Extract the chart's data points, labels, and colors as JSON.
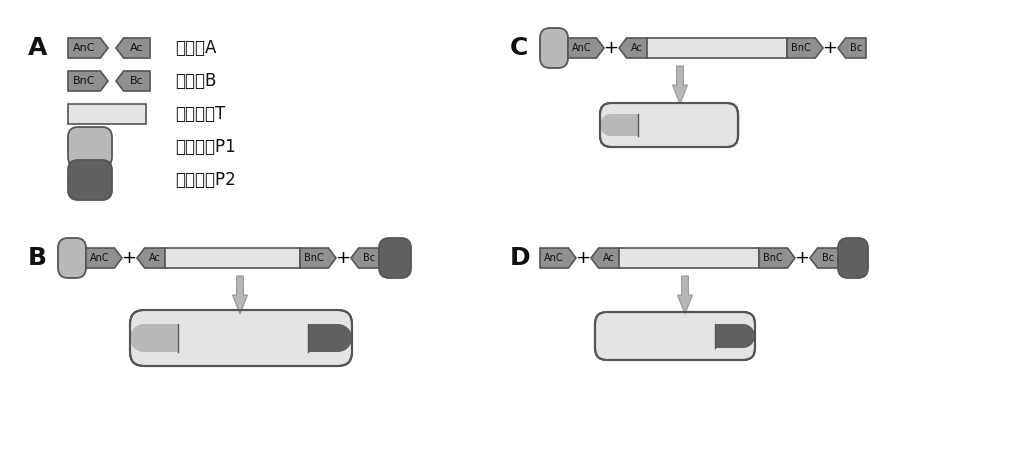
{
  "background": "#ffffff",
  "label_A": "A",
  "label_B": "B",
  "label_C": "C",
  "label_D": "D",
  "legend_labels": [
    "内含肽A",
    "内含肽B",
    "目的蛋白T",
    "辅助蛋白P1",
    "辅助蛋白P2"
  ],
  "colors": {
    "An": "#909090",
    "Ac": "#909090",
    "Bn": "#909090",
    "Bc": "#909090",
    "T": "#e4e4e4",
    "P1": "#b8b8b8",
    "P2": "#606060",
    "border": "#555555",
    "text": "#111111",
    "arrow_fill": "#b0b0b0",
    "arrow_edge": "#909090"
  }
}
